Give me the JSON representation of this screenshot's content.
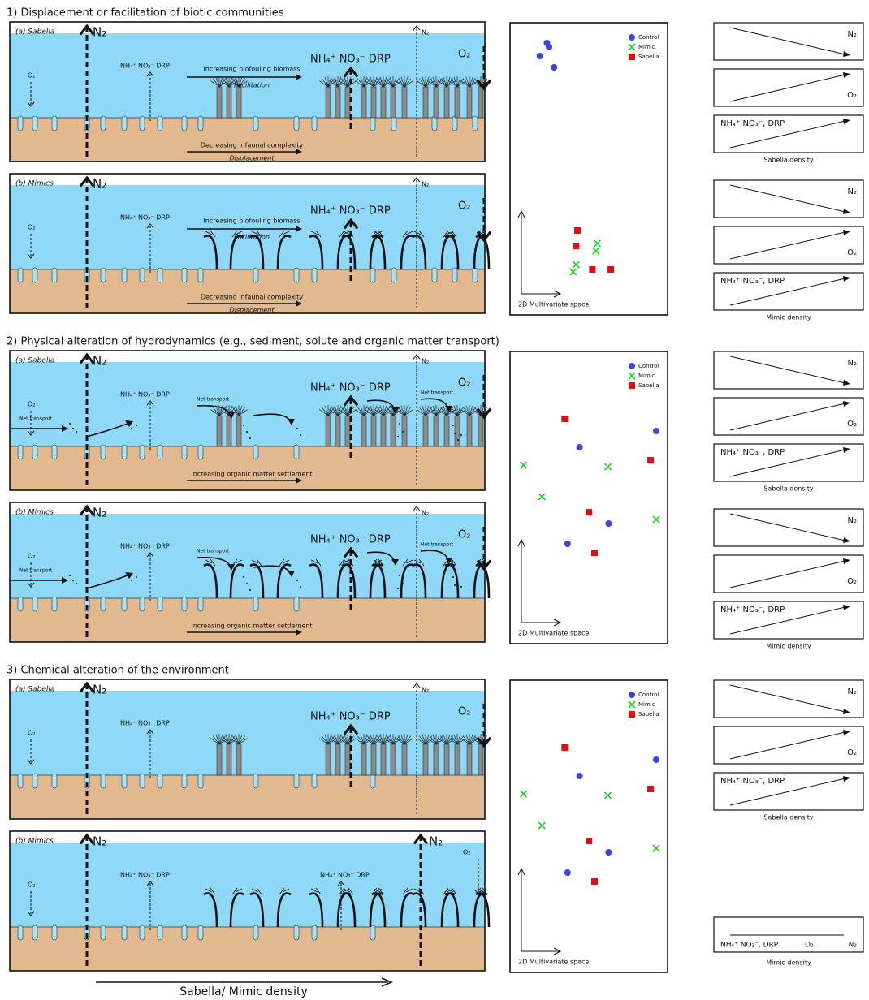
{
  "sections": [
    {
      "title": "1) Displacement or facilitation of biotic communities",
      "panels": [
        {
          "label": "(a) Sabella",
          "n2_big": "N₂",
          "o2_small": "O₂",
          "nut_small": "NH₄⁺ NO₃⁻ DRP",
          "top_arrow": "Increasing biofouling biomass",
          "top_note": "Facilitation",
          "nut_big": "NH₄⁺ NO₃⁻ DRP",
          "n2_small": "N₂",
          "o2_big": "O₂",
          "bottom_arrow": "Decreasing infaunal complexity",
          "bottom_note": "Displacement"
        },
        {
          "label": "(b) Mimics",
          "n2_big": "N₂",
          "o2_small": "O₂",
          "nut_small": "NH₄⁺ NO₃⁻ DRP",
          "top_arrow": "Increasing biofouling biomass",
          "top_note": "Facilitation",
          "nut_big": "NH₄⁺ NO₃⁻ DRP",
          "n2_small": "N₂",
          "o2_big": "O₂",
          "bottom_arrow": "Decreasing infaunal complexity",
          "bottom_note": "Displacement"
        }
      ],
      "legend": [
        "Control",
        "Mimic",
        "Sabella"
      ],
      "ordination_axis": "2D Multivariate space",
      "trends": [
        {
          "boxes": [
            [
              "N₂"
            ],
            [
              "O₂"
            ],
            [
              "NH₄⁺ NO₃⁻, DRP"
            ]
          ],
          "caption": "Sabella density"
        },
        {
          "boxes": [
            [
              "N₂"
            ],
            [
              "O₂"
            ],
            [
              "NH₄⁺ NO₃⁻, DRP"
            ]
          ],
          "caption": "Mimic density"
        }
      ]
    },
    {
      "title": "2) Physical alteration of hydrodynamics (e.g., sediment, solute and organic matter transport)",
      "panels": [
        {
          "label": "(a) Sabella",
          "n2_big": "N₂",
          "o2_small": "O₂",
          "net1": "Net transport",
          "nut_small": "NH₄⁺ NO₃⁻ DRP",
          "net2": "Net transport",
          "nut_big": "NH₄⁺ NO₃⁻ DRP",
          "n2_small": "N₂",
          "net3": "Net transport",
          "o2_big": "O₂",
          "bottom_arrow": "Increasing organic matter settlement"
        },
        {
          "label": "(b) Mimics",
          "n2_big": "N₂",
          "o2_small": "O₂",
          "net1": "Net transport",
          "nut_small": "NH₄⁺ NO₃⁻ DRP",
          "net2": "Net transport",
          "nut_big": "NH₄⁺ NO₃⁻ DRP",
          "n2_small": "N₂",
          "net3": "Net transport",
          "o2_big": "O₂",
          "bottom_arrow": "Increasing organic matter settlement"
        }
      ],
      "legend": [
        "Control",
        "Mimic",
        "Sabella"
      ],
      "ordination_axis": "2D Multivariate space",
      "trends": [
        {
          "boxes": [
            [
              "N₂"
            ],
            [
              "O₂"
            ],
            [
              "NH₄⁺ NO₃⁻, DRP"
            ]
          ],
          "caption": "Sabella density"
        },
        {
          "boxes": [
            [
              "N₂"
            ],
            [
              "O₂"
            ],
            [
              "NH₄⁺ NO₃⁻, DRP"
            ]
          ],
          "caption": "Mimic density"
        }
      ]
    },
    {
      "title": "3) Chemical alteration of the environment",
      "panels": [
        {
          "label": "(a) Sabella",
          "n2_big": "N₂",
          "o2_small": "O₂",
          "nut_small": "NH₄⁺ NO₃⁻ DRP",
          "nut_big": "NH₄⁺ NO₃⁻ DRP",
          "n2_small": "N₂",
          "o2_big": "O₂"
        },
        {
          "label": "(b) Mimics",
          "n2_big": "N₂",
          "o2_small": "O₂",
          "nut_small": "NH₄⁺ NO₃⁻ DRP",
          "nut_mid": "NH₄⁺ NO₃⁻ DRP",
          "n2_big_right": "N₂",
          "o2_small_right": "O₂"
        }
      ],
      "legend": [
        "Control",
        "Mimic",
        "Sabella"
      ],
      "ordination_axis": "2D Multivariate space",
      "trends": [
        {
          "boxes": [
            [
              "N₂"
            ],
            [
              "O₂"
            ],
            [
              "NH₄⁺ NO₃⁻, DRP"
            ]
          ],
          "caption": "Sabella density"
        },
        {
          "boxes": [
            [
              "NH₄⁺ NO₃⁻, DRP",
              "O₂",
              "N₂"
            ]
          ],
          "caption": "Mimic density"
        }
      ]
    }
  ],
  "x_axis_label": "Sabella/ Mimic density"
}
